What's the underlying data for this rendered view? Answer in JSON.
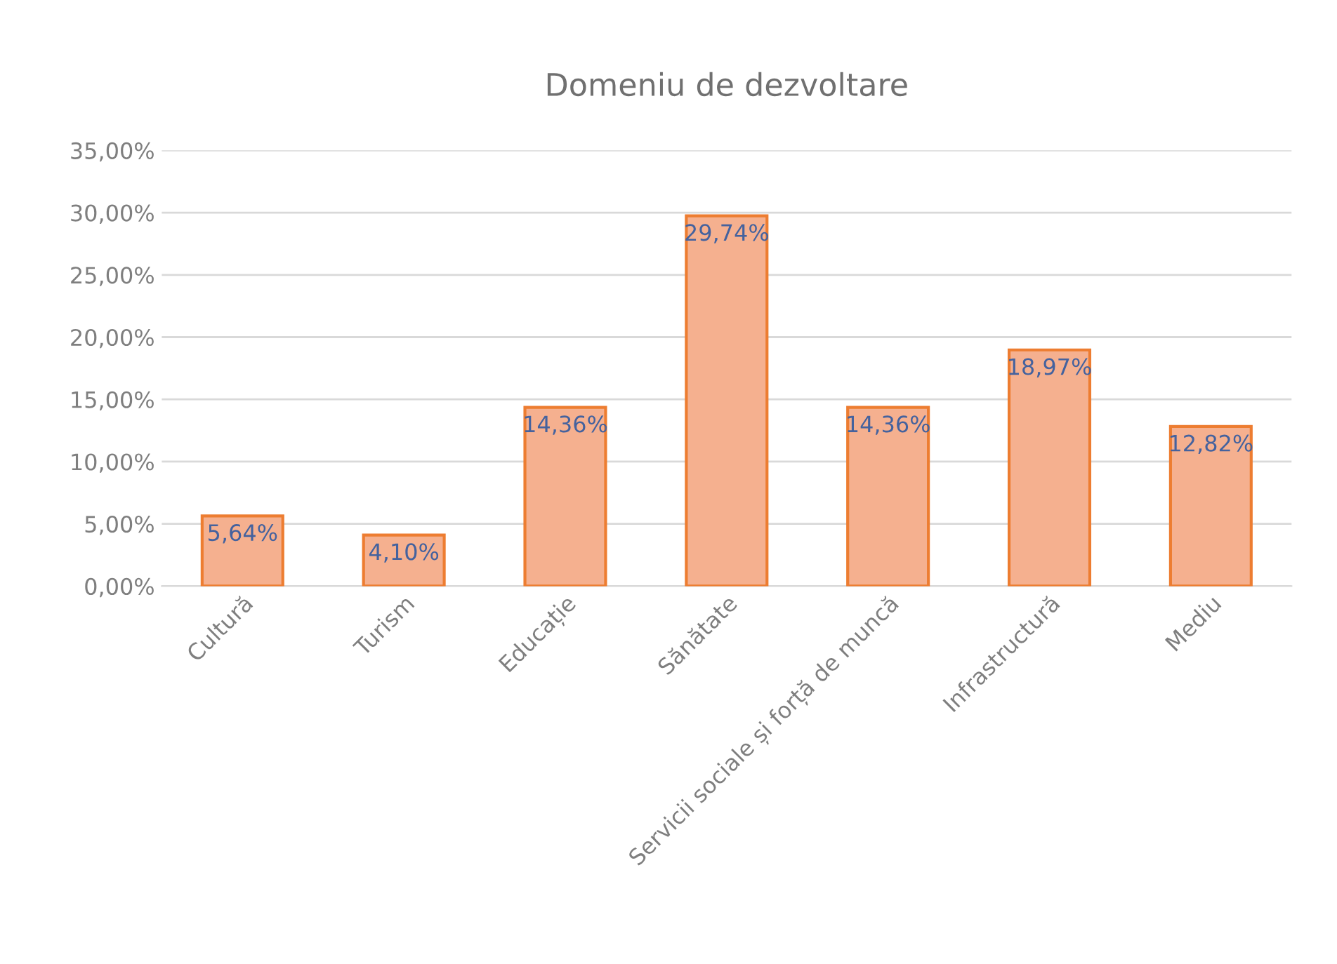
{
  "chart_data": {
    "type": "bar",
    "title": "Domeniu de dezvoltare",
    "categories": [
      "Cultură",
      "Turism",
      "Educație",
      "Sănătate",
      "Servicii sociale și forță de muncă",
      "Infrastructură",
      "Mediu"
    ],
    "values": [
      5.64,
      4.1,
      14.36,
      29.74,
      14.36,
      18.97,
      12.82
    ],
    "value_labels": [
      "5,64%",
      "4,10%",
      "14,36%",
      "29,74%",
      "14,36%",
      "18,97%",
      "12,82%"
    ],
    "color": "#f5b08f",
    "ylim": [
      0,
      35
    ],
    "yticks": [
      {
        "value": 0,
        "label": "0,00%"
      },
      {
        "value": 5,
        "label": "5,00%"
      },
      {
        "value": 10,
        "label": "10,00%"
      },
      {
        "value": 15,
        "label": "15,00%"
      },
      {
        "value": 20,
        "label": "20,00%"
      },
      {
        "value": 25,
        "label": "25,00%"
      },
      {
        "value": 30,
        "label": "30,00%"
      },
      {
        "value": 35,
        "label": "35,00%"
      }
    ],
    "grid": "y"
  }
}
